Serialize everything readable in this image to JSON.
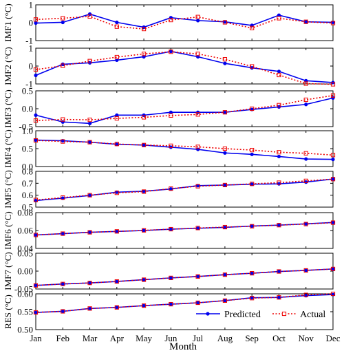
{
  "chart_data": [
    {
      "type": "line",
      "ylabel": "IMF1 (°C)",
      "ylim": [
        -1,
        1
      ],
      "yticks": [
        "-1",
        "0",
        "1"
      ],
      "x": [
        "Jan",
        "Feb",
        "Mar",
        "Apr",
        "May",
        "Jun",
        "Jul",
        "Aug",
        "Sep",
        "Oct",
        "Nov",
        "Dec"
      ],
      "series": [
        {
          "name": "Predicted",
          "values": [
            -0.02,
            0.02,
            0.48,
            0.02,
            -0.25,
            0.28,
            0.12,
            0.05,
            -0.15,
            0.42,
            0.05,
            0.02
          ]
        },
        {
          "name": "Actual",
          "values": [
            0.18,
            0.25,
            0.35,
            -0.22,
            -0.35,
            0.15,
            0.32,
            0.02,
            -0.3,
            0.25,
            0.05,
            -0.02
          ]
        }
      ]
    },
    {
      "type": "line",
      "ylabel": "IMF2 (°C)",
      "ylim": [
        -1,
        1
      ],
      "yticks": [
        "-1",
        "0",
        "1"
      ],
      "x": [
        "Jan",
        "Feb",
        "Mar",
        "Apr",
        "May",
        "Jun",
        "Jul",
        "Aug",
        "Sep",
        "Oct",
        "Nov",
        "Dec"
      ],
      "series": [
        {
          "name": "Predicted",
          "values": [
            -0.52,
            0.1,
            0.18,
            0.33,
            0.52,
            0.82,
            0.52,
            0.15,
            -0.1,
            -0.3,
            -0.82,
            -0.92
          ]
        },
        {
          "name": "Actual",
          "values": [
            -0.2,
            0.02,
            0.28,
            0.5,
            0.68,
            0.8,
            0.68,
            0.38,
            -0.02,
            -0.5,
            -0.98,
            -1.02
          ]
        }
      ]
    },
    {
      "type": "line",
      "ylabel": "IMF3 (°C)",
      "ylim": [
        -0.5,
        0.5
      ],
      "yticks": [
        "-0.5",
        "0.0",
        "0.5"
      ],
      "x": [
        "Jan",
        "Feb",
        "Mar",
        "Apr",
        "May",
        "Jun",
        "Jul",
        "Aug",
        "Sep",
        "Oct",
        "Nov",
        "Dec"
      ],
      "series": [
        {
          "name": "Predicted",
          "values": [
            -0.18,
            -0.37,
            -0.41,
            -0.18,
            -0.18,
            -0.1,
            -0.1,
            -0.1,
            -0.02,
            0.05,
            0.12,
            0.3
          ]
        },
        {
          "name": "Actual",
          "values": [
            -0.33,
            -0.3,
            -0.31,
            -0.27,
            -0.24,
            -0.19,
            -0.16,
            -0.1,
            0.0,
            0.1,
            0.25,
            0.37
          ]
        }
      ]
    },
    {
      "type": "line",
      "ylabel": "IMF4 (°C)",
      "ylim": [
        0.0,
        1.0
      ],
      "yticks": [
        "0.0",
        "0.5",
        "1.0"
      ],
      "x": [
        "Jan",
        "Feb",
        "Mar",
        "Apr",
        "May",
        "Jun",
        "Jul",
        "Aug",
        "Sep",
        "Oct",
        "Nov",
        "Dec"
      ],
      "series": [
        {
          "name": "Predicted",
          "values": [
            0.74,
            0.72,
            0.68,
            0.62,
            0.6,
            0.54,
            0.48,
            0.38,
            0.34,
            0.28,
            0.21,
            0.2
          ]
        },
        {
          "name": "Actual",
          "values": [
            0.73,
            0.7,
            0.68,
            0.63,
            0.6,
            0.58,
            0.55,
            0.5,
            0.46,
            0.4,
            0.37,
            0.32
          ]
        }
      ]
    },
    {
      "type": "line",
      "ylabel": "IMF5 (°C)",
      "ylim": [
        0.5,
        0.8
      ],
      "yticks": [
        "0.5",
        "0.6",
        "0.7",
        "0.8"
      ],
      "x": [
        "Jan",
        "Feb",
        "Mar",
        "Apr",
        "May",
        "Jun",
        "Jul",
        "Aug",
        "Sep",
        "Oct",
        "Nov",
        "Dec"
      ],
      "series": [
        {
          "name": "Predicted",
          "values": [
            0.555,
            0.575,
            0.598,
            0.625,
            0.633,
            0.652,
            0.68,
            0.685,
            0.692,
            0.695,
            0.71,
            0.735
          ]
        },
        {
          "name": "Actual",
          "values": [
            0.56,
            0.58,
            0.6,
            0.62,
            0.63,
            0.655,
            0.675,
            0.685,
            0.695,
            0.705,
            0.72,
            0.735
          ]
        }
      ]
    },
    {
      "type": "line",
      "ylabel": "IMF6 (°C)",
      "ylim": [
        0.04,
        0.08
      ],
      "yticks": [
        "0.04",
        "0.06",
        "0.08"
      ],
      "x": [
        "Jan",
        "Feb",
        "Mar",
        "Apr",
        "May",
        "Jun",
        "Jul",
        "Aug",
        "Sep",
        "Oct",
        "Nov",
        "Dec"
      ],
      "series": [
        {
          "name": "Predicted",
          "values": [
            0.055,
            0.0565,
            0.058,
            0.059,
            0.06,
            0.0615,
            0.0625,
            0.0635,
            0.065,
            0.066,
            0.0675,
            0.069
          ]
        },
        {
          "name": "Actual",
          "values": [
            0.055,
            0.0565,
            0.058,
            0.059,
            0.0602,
            0.0615,
            0.0628,
            0.0638,
            0.0648,
            0.066,
            0.0672,
            0.0688
          ]
        }
      ]
    },
    {
      "type": "line",
      "ylabel": "IMF7 (°C)",
      "ylim": [
        -0.05,
        0.05
      ],
      "yticks": [
        "-0.05",
        "0.00",
        "0.05"
      ],
      "x": [
        "Jan",
        "Feb",
        "Mar",
        "Apr",
        "May",
        "Jun",
        "Jul",
        "Aug",
        "Sep",
        "Oct",
        "Nov",
        "Dec"
      ],
      "series": [
        {
          "name": "Predicted",
          "values": [
            -0.04,
            -0.036,
            -0.033,
            -0.029,
            -0.024,
            -0.019,
            -0.015,
            -0.01,
            -0.006,
            -0.001,
            0.002,
            0.006
          ]
        },
        {
          "name": "Actual",
          "values": [
            -0.04,
            -0.036,
            -0.033,
            -0.029,
            -0.024,
            -0.019,
            -0.015,
            -0.01,
            -0.006,
            -0.001,
            0.002,
            0.006
          ]
        }
      ]
    },
    {
      "type": "line",
      "ylabel": "RES (°C)",
      "ylim": [
        0.5,
        0.6
      ],
      "yticks": [
        "0.50",
        "0.55",
        "0.60"
      ],
      "xlabel": "Month",
      "legend": "bottom-right",
      "x": [
        "Jan",
        "Feb",
        "Mar",
        "Apr",
        "May",
        "Jun",
        "Jul",
        "Aug",
        "Sep",
        "Oct",
        "Nov",
        "Dec"
      ],
      "series": [
        {
          "name": "Predicted",
          "values": [
            0.548,
            0.551,
            0.559,
            0.562,
            0.567,
            0.571,
            0.575,
            0.581,
            0.589,
            0.59,
            0.595,
            0.598
          ]
        },
        {
          "name": "Actual",
          "values": [
            0.548,
            0.551,
            0.559,
            0.562,
            0.567,
            0.571,
            0.575,
            0.581,
            0.588,
            0.59,
            0.597,
            0.6
          ]
        }
      ]
    }
  ],
  "legend": {
    "predicted_label": "Predicted",
    "actual_label": "Actual"
  },
  "xaxis": {
    "label": "Month",
    "ticks": [
      "Jan",
      "Feb",
      "Mar",
      "Apr",
      "May",
      "Jun",
      "Jul",
      "Aug",
      "Sep",
      "Oct",
      "Nov",
      "Dec"
    ]
  },
  "colors": {
    "predicted": "#0000ee",
    "actual": "#ee0000"
  }
}
